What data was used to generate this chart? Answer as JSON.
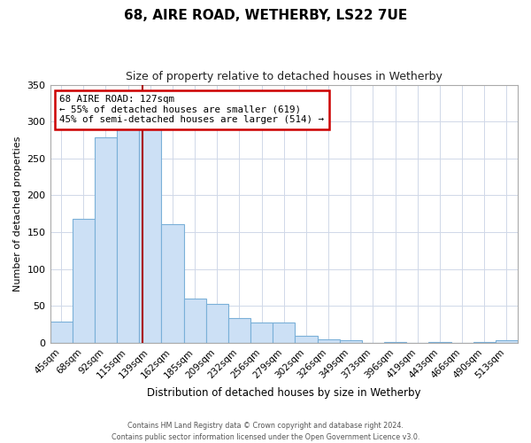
{
  "title": "68, AIRE ROAD, WETHERBY, LS22 7UE",
  "subtitle": "Size of property relative to detached houses in Wetherby",
  "xlabel": "Distribution of detached houses by size in Wetherby",
  "ylabel": "Number of detached properties",
  "bin_labels": [
    "45sqm",
    "68sqm",
    "92sqm",
    "115sqm",
    "139sqm",
    "162sqm",
    "185sqm",
    "209sqm",
    "232sqm",
    "256sqm",
    "279sqm",
    "302sqm",
    "326sqm",
    "349sqm",
    "373sqm",
    "396sqm",
    "419sqm",
    "443sqm",
    "466sqm",
    "490sqm",
    "513sqm"
  ],
  "bar_values": [
    29,
    168,
    278,
    291,
    291,
    161,
    60,
    53,
    33,
    27,
    27,
    10,
    5,
    4,
    0,
    1,
    0,
    1,
    0,
    1,
    3
  ],
  "bar_color": "#cce0f5",
  "bar_edge_color": "#7ab0d8",
  "vline_x_index": 3.65,
  "vline_color": "#aa0000",
  "ylim": [
    0,
    350
  ],
  "yticks": [
    0,
    50,
    100,
    150,
    200,
    250,
    300,
    350
  ],
  "annotation_title": "68 AIRE ROAD: 127sqm",
  "annotation_line1": "← 55% of detached houses are smaller (619)",
  "annotation_line2": "45% of semi-detached houses are larger (514) →",
  "annotation_box_color": "#ffffff",
  "annotation_box_edge": "#cc0000",
  "footer1": "Contains HM Land Registry data © Crown copyright and database right 2024.",
  "footer2": "Contains public sector information licensed under the Open Government Licence v3.0.",
  "n_bins": 21
}
